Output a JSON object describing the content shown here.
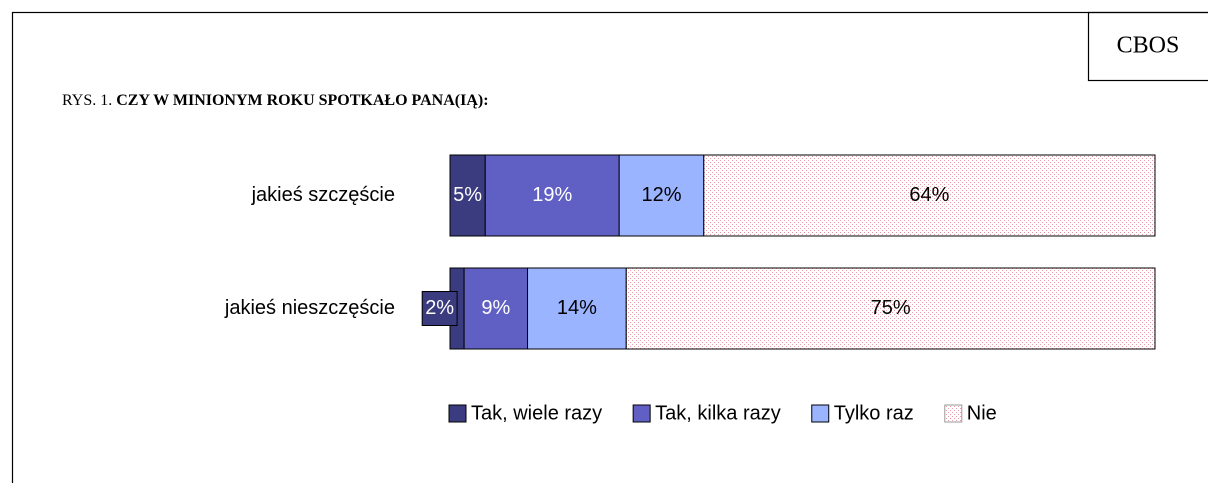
{
  "chart_data": {
    "type": "bar",
    "orientation": "horizontal",
    "stacked": true,
    "source": "CBOS",
    "figure_label": "RYS. 1.",
    "title": "CZY W MINIONYM ROKU SPOTKAŁO PANA(IĄ):",
    "categories": [
      "jakieś szczęście",
      "jakieś nieszczęście"
    ],
    "xlim": [
      0,
      100
    ],
    "legend": "bottom",
    "series": [
      {
        "name": "Tak, wiele razy",
        "color": "#3b3b80",
        "values": [
          5,
          2
        ],
        "value_labels": [
          "5%",
          "2%"
        ]
      },
      {
        "name": "Tak, kilka razy",
        "color": "#5f5fc4",
        "values": [
          19,
          9
        ],
        "value_labels": [
          "19%",
          "9%"
        ]
      },
      {
        "name": "Tylko raz",
        "color": "#9bb4ff",
        "values": [
          12,
          14
        ],
        "value_labels": [
          "12%",
          "14%"
        ]
      },
      {
        "name": "Nie",
        "color": "pattern",
        "values": [
          64,
          75
        ],
        "value_labels": [
          "64%",
          "75%"
        ]
      }
    ]
  }
}
